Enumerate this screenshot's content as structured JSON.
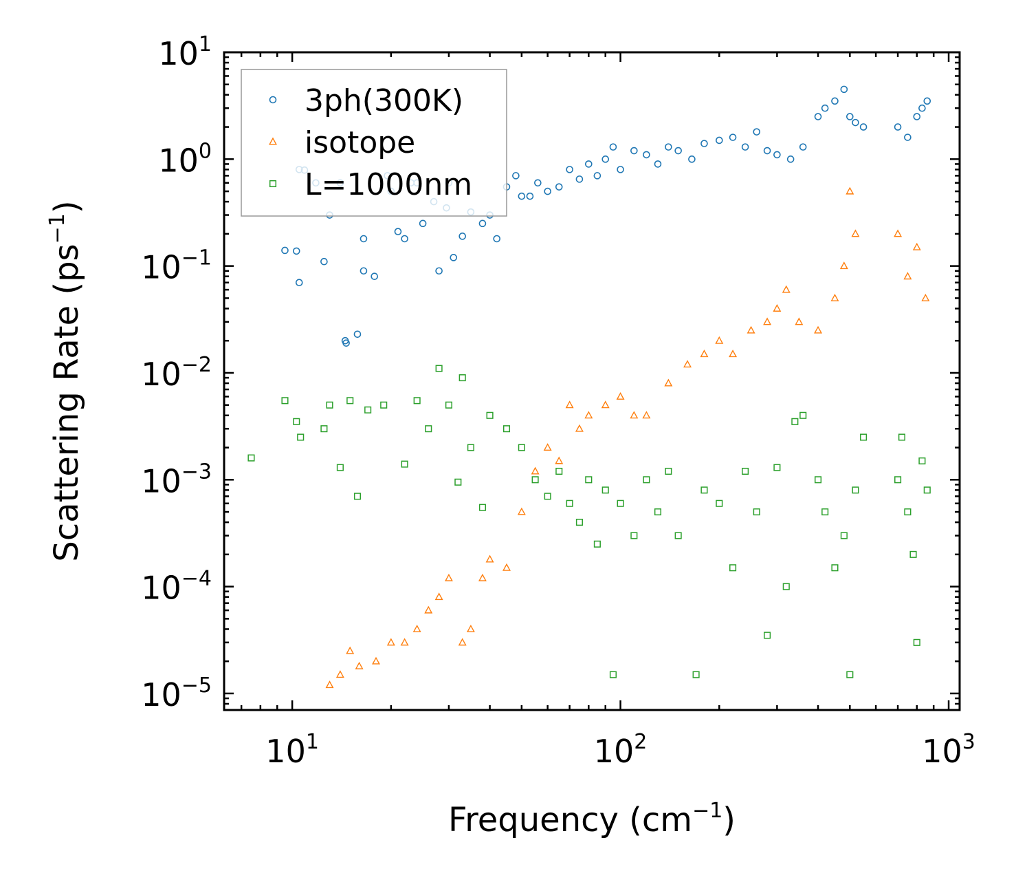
{
  "chart_data": {
    "type": "scatter",
    "title": "",
    "xlabel": "Frequency (cm",
    "xlabel_sup": "−1",
    "xlabel_tail": ")",
    "ylabel": "Scattering Rate (ps",
    "ylabel_sup": "−1",
    "ylabel_tail": ")",
    "xscale": "log",
    "yscale": "log",
    "xlim": [
      6.2,
      1080
    ],
    "ylim": [
      7e-06,
      10
    ],
    "x_ticks": [
      {
        "value": 10,
        "base": "10",
        "exp": "1"
      },
      {
        "value": 100,
        "base": "10",
        "exp": "2"
      },
      {
        "value": 1000,
        "base": "10",
        "exp": "3"
      }
    ],
    "y_ticks": [
      {
        "value": 10,
        "base": "10",
        "exp": "1"
      },
      {
        "value": 1,
        "base": "10",
        "exp": "0"
      },
      {
        "value": 0.1,
        "base": "10",
        "exp": "−1"
      },
      {
        "value": 0.01,
        "base": "10",
        "exp": "−2"
      },
      {
        "value": 0.001,
        "base": "10",
        "exp": "−3"
      },
      {
        "value": 0.0001,
        "base": "10",
        "exp": "−4"
      },
      {
        "value": 1e-05,
        "base": "10",
        "exp": "−5"
      }
    ],
    "legend_position": "top-left",
    "series": [
      {
        "name": "3ph(300K)",
        "marker": "circle",
        "color": "#1f77b4",
        "points": [
          [
            9.5,
            0.14
          ],
          [
            10.3,
            0.138
          ],
          [
            10.5,
            0.07
          ],
          [
            10.5,
            0.8
          ],
          [
            10.9,
            0.79
          ],
          [
            11.8,
            0.6
          ],
          [
            12.5,
            0.11
          ],
          [
            13,
            0.3
          ],
          [
            14,
            0.6
          ],
          [
            14.5,
            0.02
          ],
          [
            14.6,
            0.019
          ],
          [
            15.8,
            0.023
          ],
          [
            16.5,
            0.18
          ],
          [
            16.5,
            0.09
          ],
          [
            17.8,
            0.08
          ],
          [
            19.5,
            0.7
          ],
          [
            20,
            0.5
          ],
          [
            21,
            0.21
          ],
          [
            22,
            0.18
          ],
          [
            23,
            0.6
          ],
          [
            24,
            0.6
          ],
          [
            25,
            0.25
          ],
          [
            27,
            0.4
          ],
          [
            28,
            0.09
          ],
          [
            29.5,
            0.35
          ],
          [
            30,
            0.6
          ],
          [
            31,
            0.12
          ],
          [
            33,
            0.19
          ],
          [
            35,
            0.32
          ],
          [
            38,
            0.25
          ],
          [
            40,
            0.3
          ],
          [
            42,
            0.18
          ],
          [
            45,
            0.55
          ],
          [
            48,
            0.7
          ],
          [
            50,
            0.45
          ],
          [
            53,
            0.45
          ],
          [
            56,
            0.6
          ],
          [
            60,
            0.5
          ],
          [
            65,
            0.55
          ],
          [
            70,
            0.8
          ],
          [
            75,
            0.65
          ],
          [
            80,
            0.9
          ],
          [
            85,
            0.7
          ],
          [
            90,
            1.0
          ],
          [
            95,
            1.3
          ],
          [
            100,
            0.8
          ],
          [
            110,
            1.2
          ],
          [
            120,
            1.1
          ],
          [
            130,
            0.9
          ],
          [
            140,
            1.3
          ],
          [
            150,
            1.2
          ],
          [
            165,
            1.0
          ],
          [
            180,
            1.4
          ],
          [
            200,
            1.5
          ],
          [
            220,
            1.6
          ],
          [
            240,
            1.3
          ],
          [
            260,
            1.8
          ],
          [
            280,
            1.2
          ],
          [
            300,
            1.1
          ],
          [
            330,
            1.0
          ],
          [
            360,
            1.3
          ],
          [
            400,
            2.5
          ],
          [
            420,
            3.0
          ],
          [
            450,
            3.5
          ],
          [
            480,
            4.5
          ],
          [
            500,
            2.5
          ],
          [
            520,
            2.2
          ],
          [
            550,
            2.0
          ],
          [
            700,
            2.0
          ],
          [
            750,
            1.6
          ],
          [
            800,
            2.5
          ],
          [
            830,
            3.0
          ],
          [
            860,
            3.5
          ]
        ]
      },
      {
        "name": "isotope",
        "marker": "triangle",
        "color": "#ff7f0e",
        "points": [
          [
            13,
            1.2e-05
          ],
          [
            14,
            1.5e-05
          ],
          [
            15,
            2.5e-05
          ],
          [
            16,
            1.8e-05
          ],
          [
            18,
            2e-05
          ],
          [
            20,
            3e-05
          ],
          [
            22,
            3e-05
          ],
          [
            24,
            4e-05
          ],
          [
            26,
            6e-05
          ],
          [
            28,
            8e-05
          ],
          [
            30,
            0.00012
          ],
          [
            33,
            3e-05
          ],
          [
            35,
            4e-05
          ],
          [
            38,
            0.00012
          ],
          [
            40,
            0.00018
          ],
          [
            45,
            0.00015
          ],
          [
            50,
            0.0005
          ],
          [
            55,
            0.0012
          ],
          [
            60,
            0.002
          ],
          [
            65,
            0.0015
          ],
          [
            70,
            0.005
          ],
          [
            75,
            0.003
          ],
          [
            80,
            0.004
          ],
          [
            90,
            0.005
          ],
          [
            100,
            0.006
          ],
          [
            110,
            0.004
          ],
          [
            120,
            0.004
          ],
          [
            140,
            0.008
          ],
          [
            160,
            0.012
          ],
          [
            180,
            0.015
          ],
          [
            200,
            0.02
          ],
          [
            220,
            0.015
          ],
          [
            250,
            0.025
          ],
          [
            280,
            0.03
          ],
          [
            300,
            0.04
          ],
          [
            320,
            0.06
          ],
          [
            350,
            0.03
          ],
          [
            400,
            0.025
          ],
          [
            450,
            0.05
          ],
          [
            480,
            0.1
          ],
          [
            500,
            0.5
          ],
          [
            520,
            0.2
          ],
          [
            700,
            0.2
          ],
          [
            750,
            0.08
          ],
          [
            800,
            0.15
          ],
          [
            850,
            0.05
          ]
        ]
      },
      {
        "name": "L=1000nm",
        "marker": "square",
        "color": "#2ca02c",
        "points": [
          [
            7.5,
            0.0016
          ],
          [
            9.5,
            0.0055
          ],
          [
            10.3,
            0.0035
          ],
          [
            10.6,
            0.0025
          ],
          [
            12.5,
            0.003
          ],
          [
            13,
            0.005
          ],
          [
            14,
            0.0013
          ],
          [
            15,
            0.0055
          ],
          [
            15.8,
            0.0007
          ],
          [
            17,
            0.0045
          ],
          [
            19,
            0.005
          ],
          [
            22,
            0.0014
          ],
          [
            24,
            0.0055
          ],
          [
            26,
            0.003
          ],
          [
            28,
            0.011
          ],
          [
            30,
            0.005
          ],
          [
            32,
            0.00095
          ],
          [
            33,
            0.009
          ],
          [
            35,
            0.002
          ],
          [
            38,
            0.00055
          ],
          [
            40,
            0.004
          ],
          [
            45,
            0.003
          ],
          [
            50,
            0.002
          ],
          [
            55,
            0.001
          ],
          [
            60,
            0.0007
          ],
          [
            65,
            0.0012
          ],
          [
            70,
            0.0006
          ],
          [
            75,
            0.0004
          ],
          [
            80,
            0.001
          ],
          [
            85,
            0.00025
          ],
          [
            90,
            0.0008
          ],
          [
            95,
            1.5e-05
          ],
          [
            100,
            0.0006
          ],
          [
            110,
            0.0003
          ],
          [
            120,
            0.001
          ],
          [
            130,
            0.0005
          ],
          [
            140,
            0.0012
          ],
          [
            150,
            0.0003
          ],
          [
            170,
            1.5e-05
          ],
          [
            180,
            0.0008
          ],
          [
            200,
            0.0006
          ],
          [
            220,
            0.00015
          ],
          [
            240,
            0.0012
          ],
          [
            260,
            0.0005
          ],
          [
            280,
            3.5e-05
          ],
          [
            300,
            0.0013
          ],
          [
            320,
            0.0001
          ],
          [
            340,
            0.0035
          ],
          [
            360,
            0.004
          ],
          [
            400,
            0.001
          ],
          [
            420,
            0.0005
          ],
          [
            450,
            0.00015
          ],
          [
            480,
            0.0003
          ],
          [
            500,
            1.5e-05
          ],
          [
            520,
            0.0008
          ],
          [
            550,
            0.0025
          ],
          [
            700,
            0.001
          ],
          [
            720,
            0.0025
          ],
          [
            750,
            0.0005
          ],
          [
            780,
            0.0002
          ],
          [
            800,
            3e-05
          ],
          [
            830,
            0.0015
          ],
          [
            860,
            0.0008
          ]
        ]
      }
    ]
  }
}
